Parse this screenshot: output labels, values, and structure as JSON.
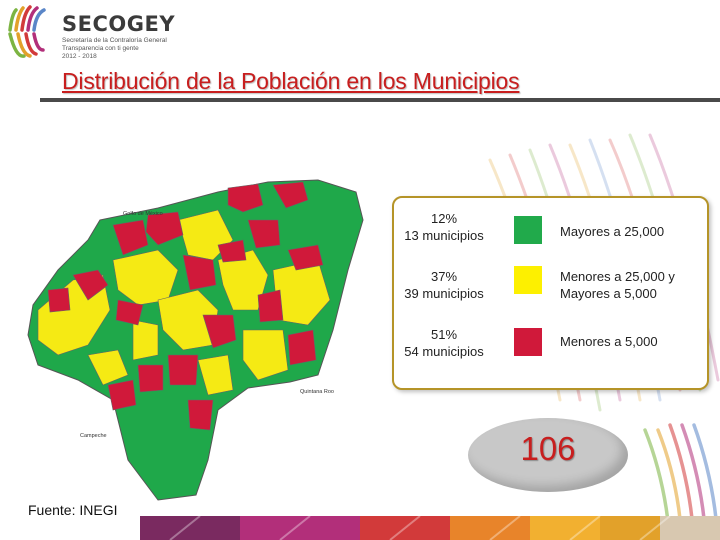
{
  "header": {
    "logo_name": "SECOGEY",
    "logo_sub_lines": [
      "Secretaría de la Contraloría General",
      "Transparencia con ti gente",
      "2012 - 2018"
    ],
    "title": "Distribución de la Población en los Municipios"
  },
  "map": {
    "labels": {
      "gulf": "Golfo de México",
      "quintana_roo": "Quintana Roo",
      "campeche": "Campeche"
    },
    "colors": {
      "large": "#1fa84a",
      "medium": "#f5ea14",
      "small": "#d0193a"
    }
  },
  "legend": {
    "items": [
      {
        "percent": "12%",
        "count": "13 municipios",
        "label_lines": [
          "Mayores a 25,000"
        ],
        "color": "#21aa4b"
      },
      {
        "percent": "37%",
        "count": "39 municipios",
        "label_lines": [
          "Menores a 25,000 y",
          "Mayores  a 5,000"
        ],
        "color": "#fdf000"
      },
      {
        "percent": "51%",
        "count": "54 municipios",
        "label_lines": [
          "Menores a 5,000"
        ],
        "color": "#d0193a"
      }
    ]
  },
  "total": "106",
  "source": "Fuente: INEGI"
}
